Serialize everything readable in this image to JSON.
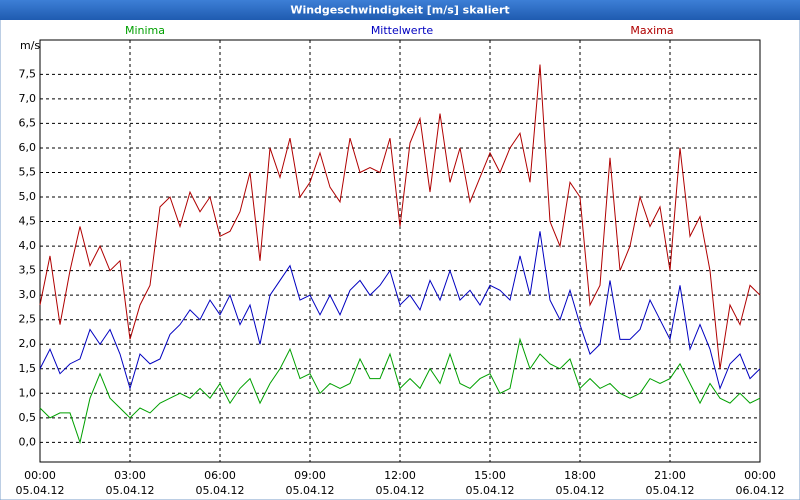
{
  "chart_data": {
    "type": "line",
    "title": "Windgeschwindigkeit [m/s] skaliert",
    "y_unit": "m/s",
    "x": [
      0,
      20,
      40,
      60,
      80,
      100,
      120,
      140,
      160,
      180,
      200,
      220,
      240,
      260,
      280,
      300,
      320,
      340,
      360,
      380,
      400,
      420,
      440,
      460,
      480,
      500,
      520,
      540,
      560,
      580,
      600,
      620,
      640,
      660,
      680,
      700,
      720,
      740,
      760,
      780,
      800,
      820,
      840,
      860,
      880,
      900,
      920,
      940,
      960,
      980,
      1000,
      1020,
      1040,
      1060,
      1080,
      1100,
      1120,
      1140,
      1160,
      1180,
      1200,
      1220,
      1240,
      1260,
      1280,
      1300,
      1320,
      1340,
      1360,
      1380,
      1400,
      1420,
      1440
    ],
    "series": [
      {
        "name": "Minima",
        "color": "#00a000",
        "values": [
          0.7,
          0.5,
          0.6,
          0.6,
          0.0,
          0.9,
          1.4,
          0.9,
          0.7,
          0.5,
          0.7,
          0.6,
          0.8,
          0.9,
          1.0,
          0.9,
          1.1,
          0.9,
          1.2,
          0.8,
          1.1,
          1.3,
          0.8,
          1.2,
          1.5,
          1.9,
          1.3,
          1.4,
          1.0,
          1.2,
          1.1,
          1.2,
          1.7,
          1.3,
          1.3,
          1.8,
          1.1,
          1.3,
          1.1,
          1.5,
          1.2,
          1.8,
          1.2,
          1.1,
          1.3,
          1.4,
          1.0,
          1.1,
          2.1,
          1.5,
          1.8,
          1.6,
          1.5,
          1.7,
          1.1,
          1.3,
          1.1,
          1.2,
          1.0,
          0.9,
          1.0,
          1.3,
          1.2,
          1.3,
          1.6,
          1.2,
          0.8,
          1.2,
          0.9,
          0.8,
          1.0,
          0.8,
          0.9
        ]
      },
      {
        "name": "Mittelwerte",
        "color": "#0000c0",
        "values": [
          1.5,
          1.9,
          1.4,
          1.6,
          1.7,
          2.3,
          2.0,
          2.3,
          1.8,
          1.1,
          1.8,
          1.6,
          1.7,
          2.2,
          2.4,
          2.7,
          2.5,
          2.9,
          2.6,
          3.0,
          2.4,
          2.8,
          2.0,
          3.0,
          3.3,
          3.6,
          2.9,
          3.0,
          2.6,
          3.0,
          2.6,
          3.1,
          3.3,
          3.0,
          3.2,
          3.5,
          2.8,
          3.0,
          2.7,
          3.3,
          2.9,
          3.5,
          2.9,
          3.1,
          2.8,
          3.2,
          3.1,
          2.9,
          3.8,
          3.0,
          4.3,
          2.9,
          2.5,
          3.1,
          2.4,
          1.8,
          2.0,
          3.3,
          2.1,
          2.1,
          2.3,
          2.9,
          2.5,
          2.1,
          3.2,
          1.9,
          2.4,
          1.9,
          1.1,
          1.6,
          1.8,
          1.3,
          1.5
        ]
      },
      {
        "name": "Maxima",
        "color": "#b00000",
        "values": [
          2.8,
          3.8,
          2.4,
          3.5,
          4.4,
          3.6,
          4.0,
          3.5,
          3.7,
          2.1,
          2.8,
          3.2,
          4.8,
          5.0,
          4.4,
          5.1,
          4.7,
          5.0,
          4.2,
          4.3,
          4.7,
          5.5,
          3.7,
          6.0,
          5.4,
          6.2,
          5.0,
          5.3,
          5.9,
          5.2,
          4.9,
          6.2,
          5.5,
          5.6,
          5.5,
          6.2,
          4.4,
          6.1,
          6.6,
          5.1,
          6.7,
          5.3,
          6.0,
          4.9,
          5.4,
          5.9,
          5.5,
          6.0,
          6.3,
          5.3,
          7.7,
          4.5,
          4.0,
          5.3,
          5.0,
          2.8,
          3.2,
          5.8,
          3.5,
          4.0,
          5.0,
          4.4,
          4.8,
          3.5,
          6.0,
          4.2,
          4.6,
          3.5,
          1.5,
          2.8,
          2.4,
          3.2,
          3.0
        ]
      }
    ],
    "xlim": [
      0,
      1440
    ],
    "xticks": [
      {
        "value": 0,
        "label": "00:00"
      },
      {
        "value": 180,
        "label": "03:00"
      },
      {
        "value": 360,
        "label": "06:00"
      },
      {
        "value": 540,
        "label": "09:00"
      },
      {
        "value": 720,
        "label": "12:00"
      },
      {
        "value": 900,
        "label": "15:00"
      },
      {
        "value": 1080,
        "label": "18:00"
      },
      {
        "value": 1260,
        "label": "21:00"
      },
      {
        "value": 1440,
        "label": "00:00"
      }
    ],
    "xtick_dates": [
      "05.04.12",
      "05.04.12",
      "05.04.12",
      "05.04.12",
      "05.04.12",
      "05.04.12",
      "05.04.12",
      "05.04.12",
      "06.04.12"
    ],
    "ylim": [
      -0.4,
      8.2
    ],
    "yticks": [
      {
        "value": 0,
        "label": "0,0"
      },
      {
        "value": 0.5,
        "label": "0,5"
      },
      {
        "value": 1,
        "label": "1,0"
      },
      {
        "value": 1.5,
        "label": "1,5"
      },
      {
        "value": 2,
        "label": "2,0"
      },
      {
        "value": 2.5,
        "label": "2,5"
      },
      {
        "value": 3,
        "label": "3,0"
      },
      {
        "value": 3.5,
        "label": "3,5"
      },
      {
        "value": 4,
        "label": "4,0"
      },
      {
        "value": 4.5,
        "label": "4,5"
      },
      {
        "value": 5,
        "label": "5,0"
      },
      {
        "value": 5.5,
        "label": "5,5"
      },
      {
        "value": 6,
        "label": "6,0"
      },
      {
        "value": 6.5,
        "label": "6,5"
      },
      {
        "value": 7,
        "label": "7,0"
      },
      {
        "value": 7.5,
        "label": "7,5"
      }
    ],
    "grid": true
  }
}
